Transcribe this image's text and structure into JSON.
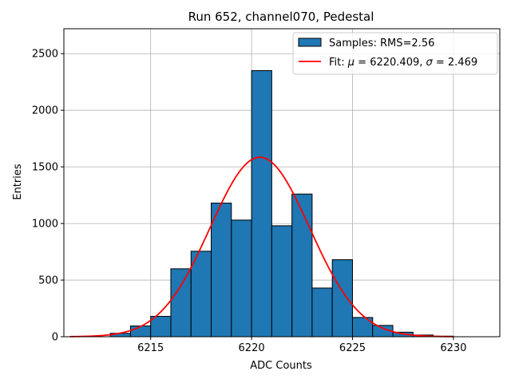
{
  "chart_data": {
    "type": "bar",
    "title": "Run 652, channel070, Pedestal",
    "xlabel": "ADC Counts",
    "ylabel": "Entries",
    "xlim": [
      6210.7,
      6232.3
    ],
    "ylim": [
      0,
      2720
    ],
    "xticks": [
      6215,
      6220,
      6225,
      6230
    ],
    "yticks": [
      0,
      500,
      1000,
      1500,
      2000,
      2500
    ],
    "grid": true,
    "bins": [
      {
        "x": 6213.0,
        "y": 30
      },
      {
        "x": 6214.0,
        "y": 95
      },
      {
        "x": 6215.0,
        "y": 180
      },
      {
        "x": 6216.0,
        "y": 600
      },
      {
        "x": 6217.0,
        "y": 755
      },
      {
        "x": 6218.0,
        "y": 1180
      },
      {
        "x": 6219.0,
        "y": 1030
      },
      {
        "x": 6220.0,
        "y": 2350
      },
      {
        "x": 6221.0,
        "y": 980
      },
      {
        "x": 6222.0,
        "y": 1260
      },
      {
        "x": 6223.0,
        "y": 430
      },
      {
        "x": 6224.0,
        "y": 680
      },
      {
        "x": 6225.0,
        "y": 170
      },
      {
        "x": 6226.0,
        "y": 100
      },
      {
        "x": 6227.0,
        "y": 40
      },
      {
        "x": 6228.0,
        "y": 15
      },
      {
        "x": 6229.0,
        "y": 5
      }
    ],
    "bin_width": 1.0,
    "series": [
      {
        "name": "Samples: RMS=2.56",
        "kind": "histogram",
        "color": "#1f77b4"
      },
      {
        "name": "Fit",
        "kind": "gaussian",
        "color": "#ff0000",
        "mu": 6220.409,
        "sigma": 2.469,
        "amplitude": 1585,
        "x_range": [
          6211,
          6230
        ]
      }
    ],
    "legend": {
      "placement": "upper-right",
      "entries": [
        {
          "prefix": "Samples: RMS=2.56"
        },
        {
          "prefix": "Fit: ",
          "mu_symbol": "μ",
          "mu_text": " = 6220.409, ",
          "sigma_symbol": "σ",
          "sigma_text": " = 2.469"
        }
      ]
    }
  }
}
